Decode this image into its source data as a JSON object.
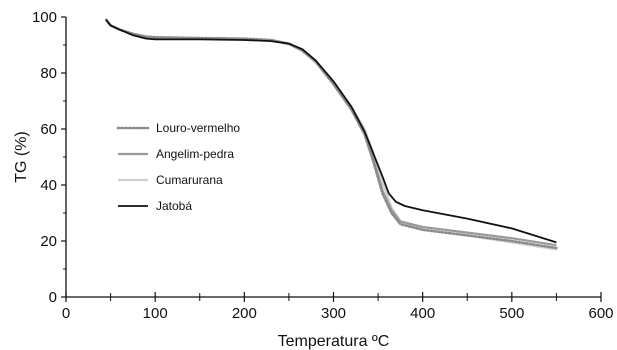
{
  "chart_data": {
    "type": "line",
    "xlabel": "Temperatura ºC",
    "ylabel": "TG (%)",
    "xlim": [
      0,
      600
    ],
    "ylim": [
      0,
      100
    ],
    "x_ticks": [
      0,
      100,
      200,
      300,
      400,
      500,
      600
    ],
    "y_ticks": [
      0,
      20,
      40,
      60,
      80,
      100
    ],
    "grid": false,
    "legend_position": "center-left",
    "series": [
      {
        "name": "Louro-vermelho",
        "color": "#8c8c8c",
        "style": "dotted",
        "points": [
          [
            45,
            99
          ],
          [
            50,
            97
          ],
          [
            60,
            95.5
          ],
          [
            75,
            94
          ],
          [
            90,
            93
          ],
          [
            100,
            92.8
          ],
          [
            150,
            92.5
          ],
          [
            200,
            92.3
          ],
          [
            230,
            91.8
          ],
          [
            250,
            90.5
          ],
          [
            265,
            88
          ],
          [
            280,
            84
          ],
          [
            300,
            76
          ],
          [
            320,
            67
          ],
          [
            335,
            58
          ],
          [
            345,
            48
          ],
          [
            355,
            37
          ],
          [
            365,
            30
          ],
          [
            375,
            26
          ],
          [
            400,
            24
          ],
          [
            450,
            22
          ],
          [
            500,
            20
          ],
          [
            550,
            17.5
          ]
        ]
      },
      {
        "name": "Angelim-pedra",
        "color": "#999999",
        "style": "solid",
        "points": [
          [
            45,
            99
          ],
          [
            50,
            97
          ],
          [
            60,
            95.5
          ],
          [
            75,
            94
          ],
          [
            90,
            92.8
          ],
          [
            100,
            92.5
          ],
          [
            150,
            92.3
          ],
          [
            200,
            92.1
          ],
          [
            230,
            91.6
          ],
          [
            250,
            90.3
          ],
          [
            265,
            88
          ],
          [
            280,
            84
          ],
          [
            300,
            76
          ],
          [
            320,
            67
          ],
          [
            335,
            58
          ],
          [
            345,
            49
          ],
          [
            355,
            38
          ],
          [
            365,
            31
          ],
          [
            375,
            27
          ],
          [
            400,
            25
          ],
          [
            450,
            23
          ],
          [
            500,
            21
          ],
          [
            550,
            18.5
          ]
        ]
      },
      {
        "name": "Cumarurana",
        "color": "#cfcfcf",
        "style": "solid",
        "points": [
          [
            45,
            99
          ],
          [
            50,
            97
          ],
          [
            60,
            95.5
          ],
          [
            75,
            94
          ],
          [
            90,
            93
          ],
          [
            100,
            92.8
          ],
          [
            150,
            92.4
          ],
          [
            200,
            92.2
          ],
          [
            230,
            91.7
          ],
          [
            250,
            90.5
          ],
          [
            265,
            88
          ],
          [
            280,
            84
          ],
          [
            300,
            77
          ],
          [
            320,
            68
          ],
          [
            335,
            60
          ],
          [
            345,
            51
          ],
          [
            355,
            41
          ],
          [
            365,
            32
          ],
          [
            375,
            27
          ],
          [
            400,
            24
          ],
          [
            450,
            22
          ],
          [
            500,
            19.5
          ],
          [
            550,
            17
          ]
        ]
      },
      {
        "name": "Jatobá",
        "color": "#111111",
        "style": "solid",
        "points": [
          [
            45,
            99
          ],
          [
            50,
            97
          ],
          [
            60,
            95.5
          ],
          [
            75,
            93.5
          ],
          [
            90,
            92.3
          ],
          [
            100,
            92
          ],
          [
            150,
            92
          ],
          [
            200,
            91.8
          ],
          [
            230,
            91.4
          ],
          [
            250,
            90.5
          ],
          [
            265,
            88.5
          ],
          [
            280,
            84.5
          ],
          [
            300,
            77
          ],
          [
            320,
            68
          ],
          [
            335,
            59
          ],
          [
            345,
            51
          ],
          [
            355,
            43
          ],
          [
            362,
            37
          ],
          [
            370,
            34
          ],
          [
            380,
            32.5
          ],
          [
            400,
            31
          ],
          [
            450,
            28
          ],
          [
            500,
            24.5
          ],
          [
            550,
            19.5
          ]
        ]
      }
    ]
  }
}
